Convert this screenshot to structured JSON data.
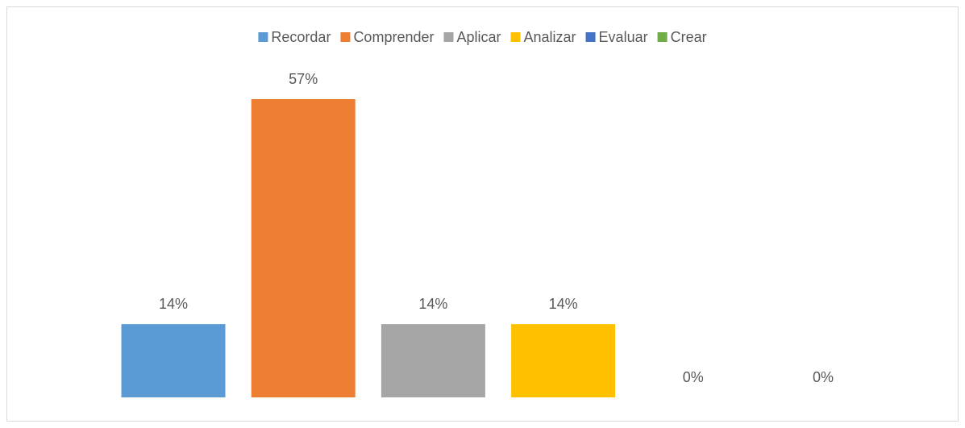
{
  "chart_data": {
    "type": "bar",
    "series": [
      {
        "name": "Recordar",
        "color": "#5B9BD5",
        "values": [
          14
        ],
        "value_labels": [
          "14%"
        ]
      },
      {
        "name": "Comprender",
        "color": "#ED7D31",
        "values": [
          57
        ],
        "value_labels": [
          "57%"
        ]
      },
      {
        "name": "Aplicar",
        "color": "#A5A5A5",
        "values": [
          14
        ],
        "value_labels": [
          "14%"
        ]
      },
      {
        "name": "Analizar",
        "color": "#FFC000",
        "values": [
          14
        ],
        "value_labels": [
          "14%"
        ]
      },
      {
        "name": "Evaluar",
        "color": "#4472C4",
        "values": [
          0
        ],
        "value_labels": [
          "0%"
        ]
      },
      {
        "name": "Crear",
        "color": "#70AD47",
        "values": [
          0
        ],
        "value_labels": [
          "0%"
        ]
      }
    ],
    "legend": "top"
  }
}
